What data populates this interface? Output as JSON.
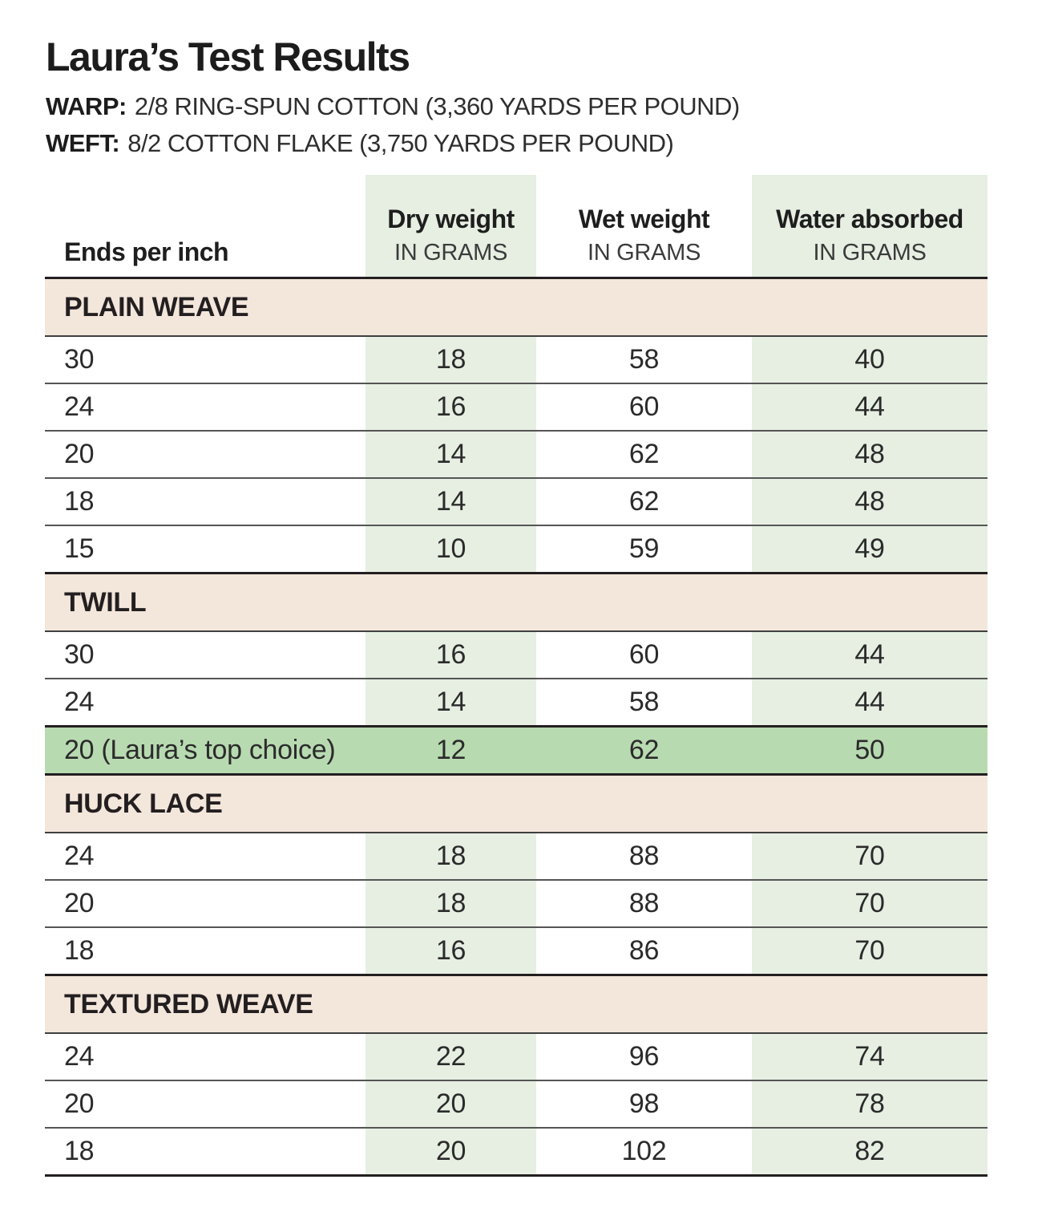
{
  "header": {
    "title": "Laura’s Test Results",
    "warp_label": "WARP:",
    "warp_text": "2/8 RING-SPUN COTTON (3,360 YARDS PER POUND)",
    "weft_label": "WEFT:",
    "weft_text": "8/2 COTTON FLAKE (3,750 YARDS PER POUND)"
  },
  "chart_data": {
    "type": "table",
    "title": "Laura’s Test Results",
    "units_note": "IN GRAMS",
    "columns": [
      {
        "label": "Ends per inch",
        "sublabel": ""
      },
      {
        "label": "Dry weight",
        "sublabel": "IN GRAMS"
      },
      {
        "label": "Wet weight",
        "sublabel": "IN GRAMS"
      },
      {
        "label": "Water absorbed",
        "sublabel": "IN GRAMS"
      }
    ],
    "sections": [
      {
        "name": "PLAIN WEAVE",
        "rows": [
          {
            "ends_per_inch": "30",
            "dry": 18,
            "wet": 58,
            "absorbed": 40
          },
          {
            "ends_per_inch": "24",
            "dry": 16,
            "wet": 60,
            "absorbed": 44
          },
          {
            "ends_per_inch": "20",
            "dry": 14,
            "wet": 62,
            "absorbed": 48
          },
          {
            "ends_per_inch": "18",
            "dry": 14,
            "wet": 62,
            "absorbed": 48
          },
          {
            "ends_per_inch": "15",
            "dry": 10,
            "wet": 59,
            "absorbed": 49
          }
        ]
      },
      {
        "name": "TWILL",
        "rows": [
          {
            "ends_per_inch": "30",
            "dry": 16,
            "wet": 60,
            "absorbed": 44
          },
          {
            "ends_per_inch": "24",
            "dry": 14,
            "wet": 58,
            "absorbed": 44
          },
          {
            "ends_per_inch": "20 (Laura’s top choice)",
            "dry": 12,
            "wet": 62,
            "absorbed": 50,
            "highlight": true
          }
        ]
      },
      {
        "name": "HUCK LACE",
        "rows": [
          {
            "ends_per_inch": "24",
            "dry": 18,
            "wet": 88,
            "absorbed": 70
          },
          {
            "ends_per_inch": "20",
            "dry": 18,
            "wet": 88,
            "absorbed": 70
          },
          {
            "ends_per_inch": "18",
            "dry": 16,
            "wet": 86,
            "absorbed": 70
          }
        ]
      },
      {
        "name": "TEXTURED WEAVE",
        "rows": [
          {
            "ends_per_inch": "24",
            "dry": 22,
            "wet": 96,
            "absorbed": 74
          },
          {
            "ends_per_inch": "20",
            "dry": 20,
            "wet": 98,
            "absorbed": 78
          },
          {
            "ends_per_inch": "18",
            "dry": 20,
            "wet": 102,
            "absorbed": 82
          }
        ]
      }
    ],
    "layout": {
      "tinted_columns": [
        "Dry weight",
        "Water absorbed"
      ],
      "highlighted_row": "TWILL 20 (Laura’s top choice)"
    }
  },
  "colors": {
    "section_header_bg": "#f3e6db",
    "tinted_column_bg": "#e6efe2",
    "highlight_row_bg": "#b8dab1",
    "rule_dark": "#231f20",
    "rule_thin": "#555555"
  }
}
